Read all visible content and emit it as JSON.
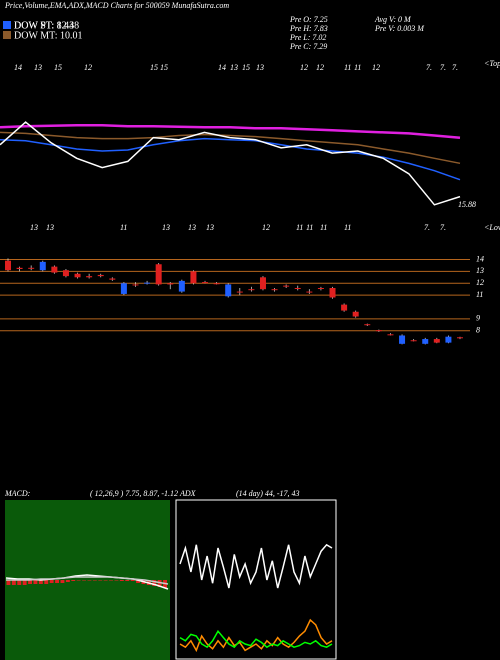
{
  "chart_data": [
    {
      "type": "line",
      "title": "Price,Volume,EMA,ADX,MACD Charts for 500059 MunafaSutra.com",
      "ylim": [
        5.5,
        20
      ],
      "annotations": [
        "Pre  O: 7.25",
        "Pre  H: 7.83",
        "Pre  L: 7.02",
        "Pre  C: 7.29",
        "Avg V: 0  M",
        "Pre  V: 0.003 M",
        "<Tops",
        "15.88"
      ],
      "top_labels": [
        "14",
        "13",
        "15",
        "12",
        "15",
        "15",
        "14",
        "13",
        "15",
        "13",
        "12",
        "12",
        "11",
        "11",
        "12",
        "7.",
        "7.",
        "7."
      ],
      "series": [
        {
          "name": "DOW PT: 12.48",
          "color": "#e020e0",
          "values": [
            13.5,
            13.6,
            13.65,
            13.7,
            13.7,
            13.6,
            13.6,
            13.55,
            13.5,
            13.5,
            13.4,
            13.4,
            13.3,
            13.2,
            13.1,
            13.0,
            12.9,
            12.7,
            12.48
          ]
        },
        {
          "name": "DOW MT: 10.01",
          "color": "#8b5a2b",
          "values": [
            13.0,
            12.9,
            12.7,
            12.5,
            12.4,
            12.4,
            12.5,
            12.7,
            12.8,
            12.7,
            12.6,
            12.4,
            12.2,
            12.0,
            11.8,
            11.4,
            11.0,
            10.5,
            10.01
          ]
        },
        {
          "name": "DOW ST: 8.43",
          "color": "#2060ff",
          "values": [
            12.3,
            12.2,
            11.8,
            11.4,
            11.2,
            11.3,
            11.8,
            12.2,
            12.4,
            12.3,
            12.2,
            11.8,
            11.4,
            11.2,
            11.0,
            10.6,
            10.0,
            9.3,
            8.43
          ]
        },
        {
          "color": "#ffffff",
          "values": [
            11.8,
            14.0,
            12.0,
            10.5,
            9.6,
            10.2,
            12.5,
            12.3,
            13.0,
            12.5,
            12.3,
            11.5,
            11.8,
            11.0,
            11.2,
            10.5,
            9.0,
            6.0,
            6.8
          ]
        }
      ]
    },
    {
      "type": "candlestick",
      "ylim": [
        6.8,
        14.8
      ],
      "yticks": [
        14,
        13,
        12,
        11,
        9,
        8
      ],
      "grid": true,
      "up_color": "#2060ff",
      "down_color": "#e02020",
      "annotations": [
        "<Lows"
      ],
      "low_labels": [
        "13",
        "13",
        "11",
        "13",
        "13",
        "13",
        "12",
        "11",
        "11",
        "11",
        "11",
        "7.",
        "7."
      ],
      "open": [
        13.9,
        13.3,
        13.3,
        13.1,
        13.4,
        13.1,
        12.8,
        12.6,
        12.7,
        12.4,
        11.1,
        11.9,
        12.0,
        13.6,
        12.0,
        11.3,
        13.0,
        12.1,
        12.0,
        10.9,
        11.3,
        11.5,
        12.5,
        11.5,
        11.8,
        11.6,
        11.3,
        11.6,
        11.6,
        10.2,
        9.6,
        8.55,
        8.05,
        7.7,
        6.9,
        7.2,
        6.9,
        7.3,
        7.0,
        7.45
      ],
      "close": [
        13.1,
        13.2,
        13.25,
        13.8,
        12.9,
        12.6,
        12.5,
        12.5,
        12.6,
        12.3,
        12.0,
        11.85,
        12.05,
        11.9,
        11.9,
        12.2,
        12.0,
        12.05,
        11.95,
        11.9,
        11.25,
        11.45,
        11.5,
        11.45,
        11.75,
        11.55,
        11.25,
        11.55,
        10.8,
        9.7,
        9.2,
        8.5,
        8.0,
        7.65,
        7.6,
        7.15,
        7.3,
        7.0,
        7.5,
        7.4
      ],
      "high": [
        14.1,
        13.4,
        13.5,
        13.9,
        13.5,
        13.2,
        12.9,
        12.8,
        12.8,
        12.5,
        12.1,
        12.1,
        12.2,
        13.7,
        12.1,
        12.3,
        13.1,
        12.2,
        12.1,
        12.0,
        11.6,
        11.7,
        12.6,
        11.6,
        11.9,
        11.8,
        11.5,
        11.7,
        11.7,
        10.3,
        9.7,
        8.6,
        8.1,
        7.8,
        7.7,
        7.3,
        7.4,
        7.4,
        7.6,
        7.5
      ],
      "low": [
        13.0,
        13.0,
        13.1,
        13.0,
        12.8,
        12.5,
        12.4,
        12.4,
        12.5,
        12.2,
        11.0,
        11.7,
        11.9,
        11.8,
        11.5,
        11.2,
        11.9,
        12.0,
        11.9,
        10.8,
        11.0,
        11.3,
        11.4,
        11.3,
        11.6,
        11.4,
        11.1,
        11.4,
        10.7,
        9.6,
        9.1,
        8.4,
        7.9,
        7.6,
        6.85,
        7.1,
        6.85,
        6.95,
        6.95,
        7.3
      ]
    },
    {
      "type": "macd",
      "title": "MACD:",
      "subtitle": "( 12,26,9 ) 7.75, 8.87, -1.12",
      "ylim": [
        -8,
        8
      ],
      "series": [
        {
          "color": "#ffffff",
          "values": [
            0.2,
            0.1,
            0.1,
            0.0,
            0.1,
            0.2,
            0.4,
            0.5,
            0.4,
            0.3,
            0.2,
            0.1,
            -0.2,
            -0.5,
            -0.9
          ]
        },
        {
          "color": "#cccccc",
          "values": [
            0.0,
            0.0,
            0.0,
            0.1,
            0.1,
            0.2,
            0.3,
            0.3,
            0.3,
            0.3,
            0.2,
            0.1,
            0.0,
            -0.2,
            -0.4
          ]
        }
      ],
      "histogram": {
        "color": "#e02020",
        "values": [
          -0.5,
          -0.5,
          -0.5,
          -0.5,
          -0.4,
          -0.4,
          -0.4,
          -0.4,
          -0.3,
          -0.3,
          -0.3,
          -0.2,
          -0.1,
          -0.05,
          -0.05,
          -0.05,
          -0.05,
          -0.05,
          -0.05,
          -0.05,
          -0.05,
          -0.1,
          -0.1,
          -0.1,
          -0.3,
          -0.4,
          -0.5,
          -0.6,
          -0.7,
          -0.8
        ]
      }
    },
    {
      "type": "line",
      "title": "ADX",
      "subtitle": "(14  day) 44, -17, 43",
      "ylim": [
        0,
        100
      ],
      "series": [
        {
          "color": "#ffffff",
          "values": [
            60,
            70,
            55,
            72,
            50,
            65,
            48,
            70,
            58,
            45,
            66,
            52,
            60,
            48,
            55,
            70,
            50,
            62,
            45,
            58,
            72,
            55,
            48,
            65,
            52,
            60,
            68,
            72,
            70
          ]
        },
        {
          "color": "#ff8c00",
          "values": [
            10,
            8,
            12,
            6,
            15,
            10,
            7,
            12,
            8,
            14,
            9,
            11,
            6,
            8,
            10,
            7,
            12,
            9,
            14,
            10,
            8,
            11,
            15,
            18,
            25,
            22,
            14,
            10,
            12
          ]
        },
        {
          "color": "#00ff00",
          "values": [
            14,
            12,
            16,
            15,
            10,
            8,
            12,
            18,
            14,
            10,
            8,
            12,
            10,
            9,
            13,
            11,
            8,
            10,
            9,
            12,
            10,
            8,
            9,
            11,
            10,
            12,
            9,
            8,
            10
          ]
        }
      ]
    }
  ]
}
